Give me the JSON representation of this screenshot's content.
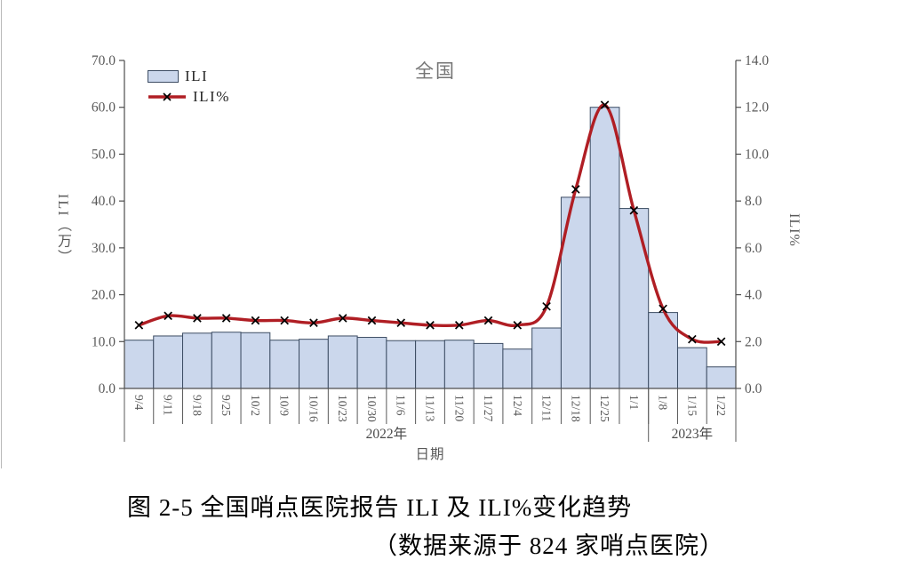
{
  "figure": {
    "title": "全国",
    "legend": {
      "bar_label": "ILI",
      "line_label": "ILI%"
    },
    "left_axis_title": "ILI（万）",
    "right_axis_title": "ILI%",
    "x_axis_title": "日期",
    "caption_line1": "图 2-5  全国哨点医院报告 ILI 及 ILI%变化趋势",
    "caption_line2": "（数据来源于 824 家哨点医院）"
  },
  "chart_data": {
    "type": "bar",
    "subtype": "combo-bar-line-dual-axis",
    "title": "全国",
    "categories": [
      "9/4",
      "9/11",
      "9/18",
      "9/25",
      "10/2",
      "10/9",
      "10/16",
      "10/23",
      "10/30",
      "11/6",
      "11/13",
      "11/20",
      "11/27",
      "12/4",
      "12/11",
      "12/18",
      "12/25",
      "1/1",
      "1/8",
      "1/15",
      "1/22"
    ],
    "series": [
      {
        "name": "ILI",
        "type": "bar",
        "axis": "left",
        "values": [
          10.3,
          11.2,
          11.8,
          12.0,
          11.9,
          10.3,
          10.5,
          11.2,
          10.9,
          10.2,
          10.2,
          10.3,
          9.6,
          8.4,
          12.9,
          40.8,
          60.0,
          38.4,
          16.2,
          8.7,
          4.6
        ]
      },
      {
        "name": "ILI%",
        "type": "line",
        "axis": "right",
        "smooth": true,
        "marker": "x",
        "values": [
          2.7,
          3.1,
          3.0,
          3.0,
          2.9,
          2.9,
          2.8,
          3.0,
          2.9,
          2.8,
          2.7,
          2.7,
          2.9,
          2.7,
          3.5,
          8.5,
          12.1,
          7.6,
          3.4,
          2.1,
          2.0
        ]
      }
    ],
    "left_axis": {
      "title": "ILI（万）",
      "min": 0,
      "max": 70,
      "step": 10
    },
    "right_axis": {
      "title": "ILI%",
      "min": 0,
      "max": 14,
      "step": 2
    },
    "x_axis": {
      "title": "日期",
      "year_groups": [
        {
          "label": "2022年",
          "from": 0,
          "to": 17
        },
        {
          "label": "2023年",
          "from": 18,
          "to": 20
        }
      ]
    },
    "legend_position": "top-left-inside",
    "grid": false,
    "colors": {
      "bar_fill": "#CBD7EC",
      "bar_border": "#3C4C63",
      "line": "#B01E24",
      "marker": "#000000",
      "axis": "#4D4D4D",
      "axis_text": "#595959",
      "title_text": "#757575",
      "caption_text": "#000000"
    }
  }
}
